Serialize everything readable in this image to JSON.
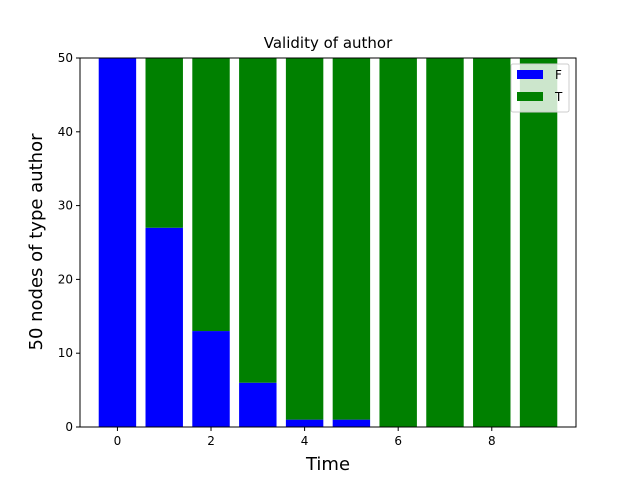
{
  "chart_data": {
    "type": "bar",
    "stacked": true,
    "title": "Validity of author",
    "xlabel": "Time",
    "ylabel": "50 nodes  of type author",
    "x": [
      0,
      1,
      2,
      3,
      4,
      5,
      6,
      7,
      8,
      9
    ],
    "xlim": [
      -0.8,
      9.8
    ],
    "ylim": [
      0,
      50
    ],
    "xticks": [
      0,
      2,
      4,
      6,
      8
    ],
    "yticks": [
      0,
      10,
      20,
      30,
      40,
      50
    ],
    "grid": false,
    "legend_position": "top-right",
    "series": [
      {
        "name": "F",
        "color": "#0000ff",
        "values": [
          50,
          27,
          13,
          6,
          1,
          1,
          0,
          0,
          0,
          0
        ]
      },
      {
        "name": "T",
        "color": "#008000",
        "values": [
          0,
          23,
          37,
          44,
          49,
          49,
          50,
          50,
          50,
          50
        ]
      }
    ]
  }
}
